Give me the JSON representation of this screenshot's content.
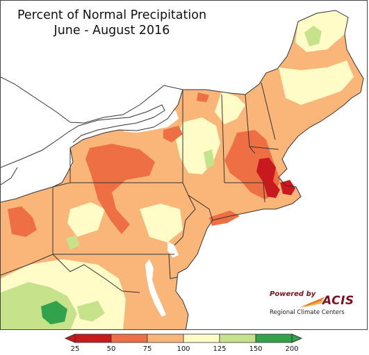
{
  "title": {
    "line1": "Percent of Normal Precipitation",
    "line2": "June - August 2016"
  },
  "logo": {
    "powered_by": "Powered by",
    "name": "ACIS",
    "subtitle": "Regional Climate Centers"
  },
  "legend": {
    "colors": [
      "#c8191e",
      "#ef6f45",
      "#f9b678",
      "#fffcc8",
      "#c6e38c",
      "#33a24d"
    ],
    "ticks": [
      "25",
      "50",
      "75",
      "100",
      "125",
      "150",
      "200"
    ],
    "arrow_left_color": "#c8191e",
    "arrow_right_color": "#33a24d"
  },
  "map": {
    "land_base_color": "#f9b678",
    "water_color": "#ffffff",
    "border_color": "#333333"
  }
}
